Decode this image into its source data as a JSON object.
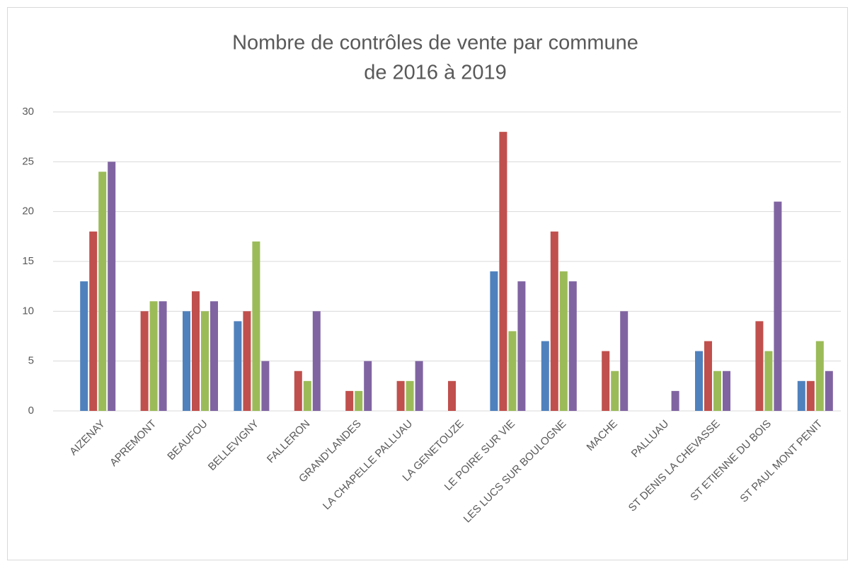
{
  "chart_data": {
    "type": "bar",
    "title": [
      "Nombre de contrôles de vente par commune",
      "de 2016 à 2019"
    ],
    "categories": [
      "AIZENAY",
      "APREMONT",
      "BEAUFOU",
      "BELLEVIGNY",
      "FALLERON",
      "GRAND'LANDES",
      "LA CHAPELLE PALLUAU",
      "LA GENETOUZE",
      "LE POIRE SUR VIE",
      "LES LUCS SUR BOULOGNE",
      "MACHE",
      "PALLUAU",
      "ST DENIS LA CHEVASSE",
      "ST ETIENNE DU BOIS",
      "ST PAUL MONT PENIT"
    ],
    "series": [
      {
        "color": "#4f81bd",
        "values": [
          13,
          0,
          10,
          9,
          0,
          0,
          0,
          0,
          14,
          7,
          0,
          0,
          6,
          0,
          3
        ]
      },
      {
        "color": "#c0504d",
        "values": [
          18,
          10,
          12,
          10,
          4,
          2,
          3,
          3,
          28,
          18,
          6,
          0,
          7,
          9,
          3
        ]
      },
      {
        "color": "#9bbb59",
        "values": [
          24,
          11,
          10,
          17,
          3,
          2,
          3,
          0,
          8,
          14,
          4,
          0,
          4,
          6,
          7
        ]
      },
      {
        "color": "#8064a2",
        "values": [
          25,
          11,
          11,
          5,
          10,
          5,
          5,
          0,
          13,
          13,
          10,
          2,
          4,
          21,
          4
        ]
      }
    ],
    "ylim": [
      0,
      30
    ],
    "yticks": [
      0,
      5,
      10,
      15,
      20,
      25,
      30
    ],
    "grid": true
  }
}
